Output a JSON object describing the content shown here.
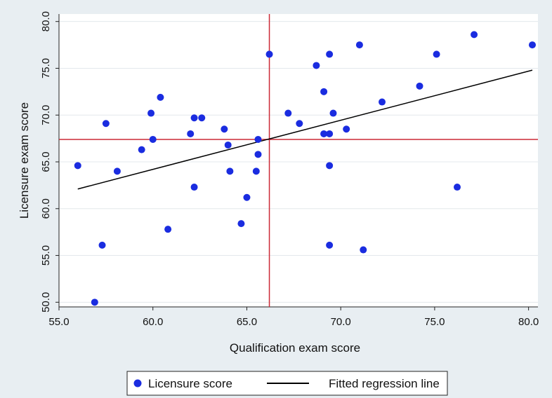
{
  "chart_data": {
    "type": "scatter",
    "xlabel": "Qualification exam score",
    "ylabel": "Licensure exam score",
    "xlim": [
      55.0,
      80.5
    ],
    "ylim": [
      49.5,
      80.8
    ],
    "xticks": [
      "55.0",
      "60.0",
      "65.0",
      "70.0",
      "75.0",
      "80.0"
    ],
    "yticks": [
      "50.0",
      "55.0",
      "60.0",
      "65.0",
      "70.0",
      "75.0",
      "80.0"
    ],
    "grid": true,
    "legend_position": "bottom",
    "reference_lines": {
      "x": 66.2,
      "y": 67.4,
      "color": "#cc2a36"
    },
    "series": [
      {
        "name": "Licensure score",
        "color": "#1a2ce0",
        "points": [
          [
            56.0,
            64.6
          ],
          [
            56.9,
            50.0
          ],
          [
            57.3,
            56.1
          ],
          [
            57.5,
            69.1
          ],
          [
            58.1,
            64.0
          ],
          [
            59.4,
            66.3
          ],
          [
            59.9,
            70.2
          ],
          [
            60.0,
            67.4
          ],
          [
            60.4,
            71.9
          ],
          [
            60.8,
            57.8
          ],
          [
            62.0,
            68.0
          ],
          [
            62.2,
            69.7
          ],
          [
            62.2,
            62.3
          ],
          [
            62.6,
            69.7
          ],
          [
            63.8,
            68.5
          ],
          [
            64.0,
            66.8
          ],
          [
            64.1,
            64.0
          ],
          [
            64.7,
            58.4
          ],
          [
            65.0,
            61.2
          ],
          [
            65.5,
            64.0
          ],
          [
            65.6,
            65.8
          ],
          [
            65.6,
            67.4
          ],
          [
            66.2,
            76.5
          ],
          [
            67.2,
            70.2
          ],
          [
            67.8,
            69.1
          ],
          [
            68.7,
            75.3
          ],
          [
            69.1,
            72.5
          ],
          [
            69.1,
            68.0
          ],
          [
            69.4,
            68.0
          ],
          [
            69.4,
            76.5
          ],
          [
            69.4,
            64.6
          ],
          [
            69.4,
            56.1
          ],
          [
            69.6,
            70.2
          ],
          [
            70.3,
            68.5
          ],
          [
            71.0,
            77.5
          ],
          [
            71.2,
            55.6
          ],
          [
            72.2,
            71.4
          ],
          [
            74.2,
            73.1
          ],
          [
            75.1,
            76.5
          ],
          [
            76.2,
            62.3
          ],
          [
            77.1,
            78.6
          ],
          [
            80.2,
            77.5
          ]
        ]
      },
      {
        "name": "Fitted regression line",
        "color": "#000000",
        "line": [
          [
            56.0,
            62.1
          ],
          [
            80.2,
            74.8
          ]
        ]
      }
    ]
  }
}
